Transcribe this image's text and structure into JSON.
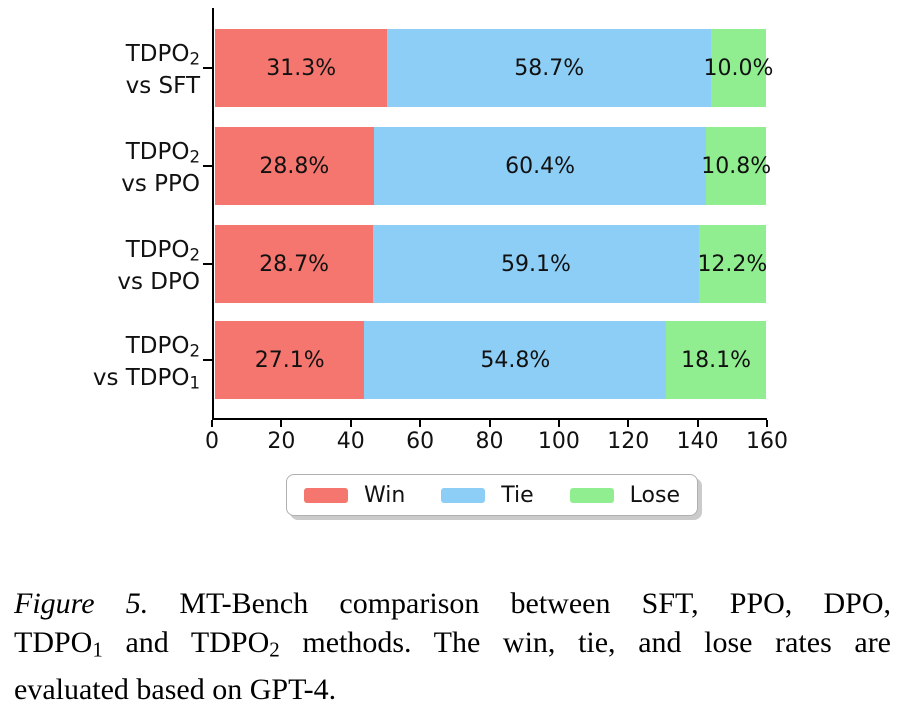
{
  "chart_data": {
    "type": "bar",
    "orientation": "horizontal",
    "stacked": true,
    "title": "",
    "xlabel": "",
    "ylabel": "",
    "categories": [
      "TDPO₂ vs SFT",
      "TDPO₂ vs PPO",
      "TDPO₂ vs DPO",
      "TDPO₂ vs TDPO₁"
    ],
    "series": [
      {
        "name": "Win",
        "color": "#f4766e",
        "values": [
          31.3,
          28.8,
          28.7,
          27.1
        ]
      },
      {
        "name": "Tie",
        "color": "#8dcef6",
        "values": [
          58.7,
          60.4,
          59.1,
          54.8
        ]
      },
      {
        "name": "Lose",
        "color": "#90ee90",
        "values": [
          10.0,
          10.8,
          12.2,
          18.1
        ]
      }
    ],
    "bar_labels": [
      [
        "31.3%",
        "58.7%",
        "10.0%"
      ],
      [
        "28.8%",
        "60.4%",
        "10.8%"
      ],
      [
        "28.7%",
        "59.1%",
        "12.2%"
      ],
      [
        "27.1%",
        "54.8%",
        "18.1%"
      ]
    ],
    "xlim": [
      0,
      160
    ],
    "xticks": [
      0,
      20,
      40,
      60,
      80,
      100,
      120,
      140,
      160
    ],
    "xtick_labels": [
      "0",
      "20",
      "40",
      "60",
      "80",
      "100",
      "120",
      "140",
      "160"
    ],
    "grid": false,
    "legend_position": "lower center"
  },
  "rows": [
    {
      "l1": "TDPO",
      "l1sub": "2",
      "l2": "vs SFT",
      "l2sub": "",
      "win": "31.3%",
      "tie": "58.7%",
      "lose": "10.0%"
    },
    {
      "l1": "TDPO",
      "l1sub": "2",
      "l2": "vs PPO",
      "l2sub": "",
      "win": "28.8%",
      "tie": "60.4%",
      "lose": "10.8%"
    },
    {
      "l1": "TDPO",
      "l1sub": "2",
      "l2": "vs DPO",
      "l2sub": "",
      "win": "28.7%",
      "tie": "59.1%",
      "lose": "12.2%"
    },
    {
      "l1": "TDPO",
      "l1sub": "2",
      "l2": "vs TDPO",
      "l2sub": "1",
      "win": "27.1%",
      "tie": "54.8%",
      "lose": "18.1%"
    }
  ],
  "caption": {
    "figure_label": "Figure 5.",
    "line1_rest": " MT-Bench comparison between SFT, PPO, DPO,",
    "line2_a": "TDPO",
    "line2_a_sub": "1",
    "line2_b": " and TDPO",
    "line2_b_sub": "2",
    "line2_c": " methods. The win, tie, and lose rates are",
    "line3": "evaluated based on GPT-4."
  }
}
